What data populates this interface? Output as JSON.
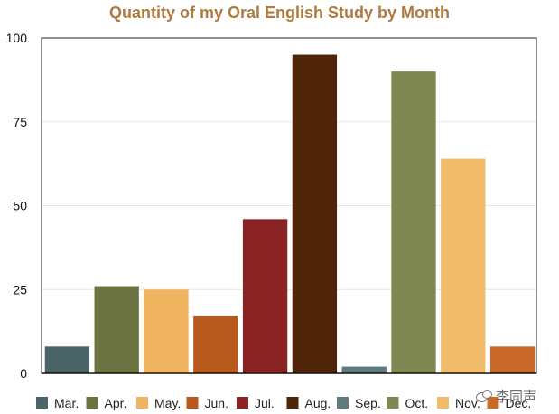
{
  "chart_data": {
    "type": "bar",
    "title": "Quantity of my Oral English Study by Month",
    "xlabel": "",
    "ylabel": "",
    "ylim": [
      0,
      100
    ],
    "yticks": [
      0,
      25,
      50,
      75,
      100
    ],
    "grid": true,
    "legend_position": "bottom",
    "categories": [
      "Mar.",
      "Apr.",
      "May.",
      "Jun.",
      "Jul.",
      "Aug.",
      "Sep.",
      "Oct.",
      "Nov.",
      "Dec."
    ],
    "values": [
      8,
      26,
      25,
      17,
      46,
      95,
      2,
      90,
      64,
      8
    ],
    "colors": [
      "#4a6468",
      "#6b7440",
      "#f0b460",
      "#b85a1e",
      "#8a2424",
      "#4e2508",
      "#5e7a7a",
      "#7e8850",
      "#f0bc6c",
      "#c8692a"
    ]
  },
  "title_color": "#b07a3e",
  "watermark": {
    "text": "李同声",
    "icon": "wechat-icon"
  }
}
